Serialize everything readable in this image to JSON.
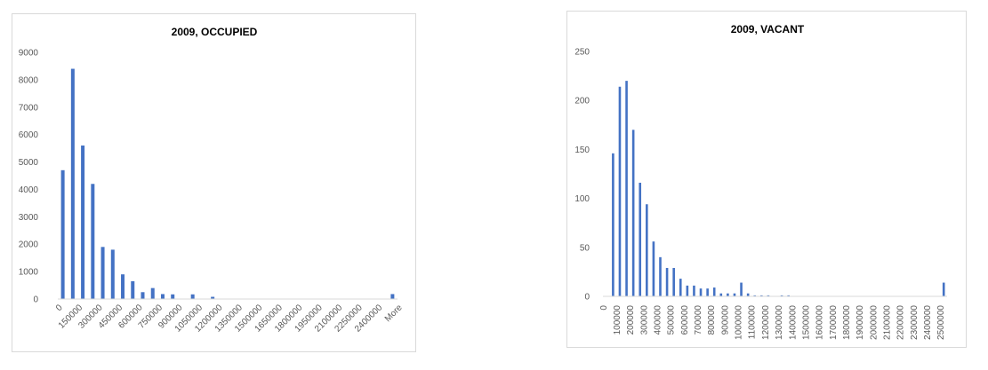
{
  "colors": {
    "bar": "#4472c4",
    "axis": "#d9d9d9",
    "text": "#595959"
  },
  "chart_data": [
    {
      "type": "bar",
      "title": "2009, OCCUPIED",
      "xlabel": "",
      "ylabel": "",
      "ylim": [
        0,
        9000
      ],
      "yticks": [
        "0",
        "1000",
        "2000",
        "3000",
        "4000",
        "5000",
        "6000",
        "7000",
        "8000",
        "9000"
      ],
      "grid": false,
      "legend": "none",
      "xtick_labels": [
        "0",
        "150000",
        "300000",
        "450000",
        "600000",
        "750000",
        "900000",
        "1050000",
        "1200000",
        "1350000",
        "1500000",
        "1650000",
        "1800000",
        "1950000",
        "2100000",
        "2250000",
        "2400000",
        "More"
      ],
      "categories": [
        "0",
        "75000",
        "150000",
        "225000",
        "300000",
        "375000",
        "450000",
        "525000",
        "600000",
        "675000",
        "750000",
        "825000",
        "900000",
        "975000",
        "1050000",
        "1125000",
        "1200000",
        "1275000",
        "1350000",
        "1425000",
        "1500000",
        "1575000",
        "1650000",
        "1725000",
        "1800000",
        "1875000",
        "1950000",
        "2025000",
        "2100000",
        "2175000",
        "2250000",
        "2325000",
        "2400000",
        "More"
      ],
      "values": [
        4700,
        8400,
        5600,
        4200,
        1900,
        1800,
        900,
        650,
        250,
        400,
        180,
        170,
        0,
        170,
        0,
        80,
        0,
        0,
        0,
        0,
        0,
        0,
        0,
        0,
        0,
        0,
        0,
        0,
        0,
        0,
        0,
        0,
        0,
        180
      ]
    },
    {
      "type": "bar",
      "title": "2009, VACANT",
      "xlabel": "",
      "ylabel": "",
      "ylim": [
        0,
        250
      ],
      "yticks": [
        "0",
        "50",
        "100",
        "150",
        "200",
        "250"
      ],
      "grid": false,
      "legend": "none",
      "xtick_labels": [
        "0",
        "100000",
        "200000",
        "300000",
        "400000",
        "500000",
        "600000",
        "700000",
        "800000",
        "900000",
        "1000000",
        "1100000",
        "1200000",
        "1300000",
        "1400000",
        "1500000",
        "1600000",
        "1700000",
        "1800000",
        "1900000",
        "2000000",
        "2100000",
        "2200000",
        "2300000",
        "2400000",
        "2500000"
      ],
      "categories": [
        "0",
        "50000",
        "100000",
        "150000",
        "200000",
        "250000",
        "300000",
        "350000",
        "400000",
        "450000",
        "500000",
        "550000",
        "600000",
        "650000",
        "700000",
        "750000",
        "800000",
        "850000",
        "900000",
        "950000",
        "1000000",
        "1050000",
        "1100000",
        "1150000",
        "1200000",
        "1250000",
        "1300000",
        "1350000",
        "1400000",
        "1450000",
        "1500000",
        "1550000",
        "1600000",
        "1650000",
        "1700000",
        "1750000",
        "1800000",
        "1850000",
        "1900000",
        "1950000",
        "2000000",
        "2050000",
        "2100000",
        "2150000",
        "2200000",
        "2250000",
        "2300000",
        "2350000",
        "2400000",
        "2450000",
        "2500000"
      ],
      "values": [
        0,
        146,
        214,
        220,
        170,
        116,
        94,
        56,
        40,
        29,
        29,
        18,
        11,
        11,
        8,
        8,
        9,
        3,
        3,
        3,
        14,
        3,
        1,
        1,
        1,
        0,
        1,
        1,
        0,
        0,
        0,
        0,
        0,
        0,
        0,
        0,
        0,
        0,
        0,
        0,
        0,
        0,
        0,
        0,
        0,
        0,
        0,
        0,
        0,
        0,
        14
      ]
    }
  ]
}
